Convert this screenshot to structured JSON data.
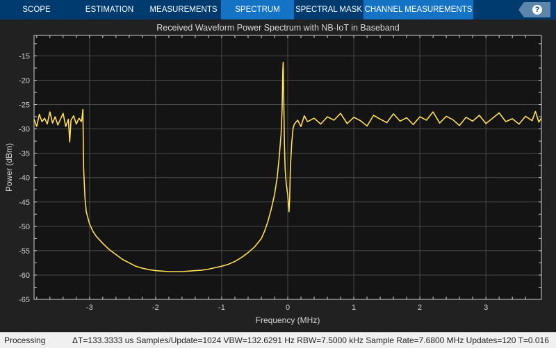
{
  "toolstrip": {
    "tabs": [
      {
        "label": "SCOPE",
        "active": false
      },
      {
        "label": "ESTIMATION",
        "active": false
      },
      {
        "label": "MEASUREMENTS",
        "active": false
      },
      {
        "label": "SPECTRUM",
        "active": true
      },
      {
        "label": "SPECTRAL MASK",
        "active": false
      },
      {
        "label": "CHANNEL MEASUREMENTS",
        "active": false
      }
    ],
    "help_icon": "?"
  },
  "status": {
    "state": "Processing",
    "info": "ΔT=133.3333 us  Samples/Update=1024  VBW=132.6291 Hz  RBW=7.5000 kHz  Sample Rate=7.6800 MHz  Updates=120  T=0.016"
  },
  "chart_data": {
    "type": "line",
    "title": "Received Waveform Power Spectrum with NB-IoT in Baseband",
    "xlabel": "Frequency (MHz)",
    "ylabel": "Power (dBm)",
    "xlim": [
      -3.84,
      3.84
    ],
    "ylim": [
      -65,
      -10.8
    ],
    "xticks": [
      -3,
      -2,
      -1,
      0,
      1,
      2,
      3
    ],
    "yticks": [
      -15,
      -20,
      -25,
      -30,
      -35,
      -40,
      -45,
      -50,
      -55,
      -60,
      -65
    ],
    "grid": true,
    "colors": {
      "trace": "#ffe05a",
      "background": "#141414",
      "grid": "#4a4a4a",
      "axes": "#d0d0d0"
    },
    "series": [
      {
        "x": [
          -3.84,
          -3.8,
          -3.76,
          -3.72,
          -3.68,
          -3.64,
          -3.6,
          -3.56,
          -3.52,
          -3.48,
          -3.44,
          -3.4,
          -3.36,
          -3.32,
          -3.3,
          -3.28,
          -3.24,
          -3.2,
          -3.16,
          -3.12,
          -3.1,
          -3.09,
          -3.07,
          -3.05,
          -3.0,
          -2.95,
          -2.9,
          -2.8,
          -2.7,
          -2.6,
          -2.5,
          -2.4,
          -2.3,
          -2.2,
          -2.1,
          -2.0,
          -1.9,
          -1.8,
          -1.7,
          -1.6,
          -1.5,
          -1.4,
          -1.3,
          -1.2,
          -1.1,
          -1.0,
          -0.9,
          -0.8,
          -0.7,
          -0.6,
          -0.5,
          -0.4,
          -0.35,
          -0.3,
          -0.25,
          -0.2,
          -0.16,
          -0.13,
          -0.1,
          -0.085,
          -0.075,
          -0.068,
          -0.06,
          -0.05,
          -0.04,
          -0.03,
          -0.02,
          -0.01,
          0.0,
          0.01,
          0.02,
          0.03,
          0.04,
          0.06,
          0.08,
          0.1,
          0.15,
          0.2,
          0.25,
          0.3,
          0.4,
          0.5,
          0.6,
          0.7,
          0.8,
          0.9,
          1.0,
          1.1,
          1.2,
          1.3,
          1.4,
          1.5,
          1.6,
          1.7,
          1.8,
          1.9,
          2.0,
          2.1,
          2.2,
          2.3,
          2.4,
          2.5,
          2.6,
          2.7,
          2.8,
          2.9,
          3.0,
          3.1,
          3.2,
          3.3,
          3.4,
          3.5,
          3.6,
          3.7,
          3.75,
          3.8,
          3.84
        ],
        "y": [
          -28,
          -29.5,
          -27,
          -28.5,
          -27.8,
          -29,
          -26.5,
          -28.8,
          -27.5,
          -29.2,
          -28,
          -26.8,
          -29.5,
          -28,
          -32.7,
          -28.2,
          -27.3,
          -29,
          -27.8,
          -28.5,
          -26,
          -38,
          -44,
          -47,
          -49.5,
          -51,
          -52,
          -53.5,
          -54.8,
          -55.8,
          -56.8,
          -57.5,
          -58.2,
          -58.6,
          -58.9,
          -59.1,
          -59.2,
          -59.3,
          -59.3,
          -59.3,
          -59.2,
          -59.1,
          -59,
          -58.8,
          -58.5,
          -58.2,
          -57.8,
          -57.2,
          -56.4,
          -55.4,
          -54.2,
          -52.5,
          -51,
          -49,
          -46.5,
          -43.5,
          -40,
          -36,
          -31,
          -26,
          -18,
          -16.3,
          -24,
          -33,
          -38,
          -40,
          -41.5,
          -42.5,
          -43.5,
          -45.5,
          -47,
          -44,
          -38,
          -33,
          -30,
          -29,
          -28.2,
          -29.5,
          -27.3,
          -28.5,
          -27.8,
          -29,
          -27.5,
          -28.2,
          -26.8,
          -28.9,
          -27.6,
          -28.3,
          -29.4,
          -27.2,
          -28,
          -28.7,
          -26.9,
          -28.4,
          -27.7,
          -29.1,
          -27.5,
          -28.2,
          -26.5,
          -28.8,
          -27.4,
          -28.1,
          -29.3,
          -27.6,
          -28.4,
          -27.2,
          -28.9,
          -27.8,
          -26.7,
          -28.5,
          -27.9,
          -29,
          -27.4,
          -28.3,
          -26.4,
          -28.6,
          -27.8
        ]
      }
    ]
  }
}
